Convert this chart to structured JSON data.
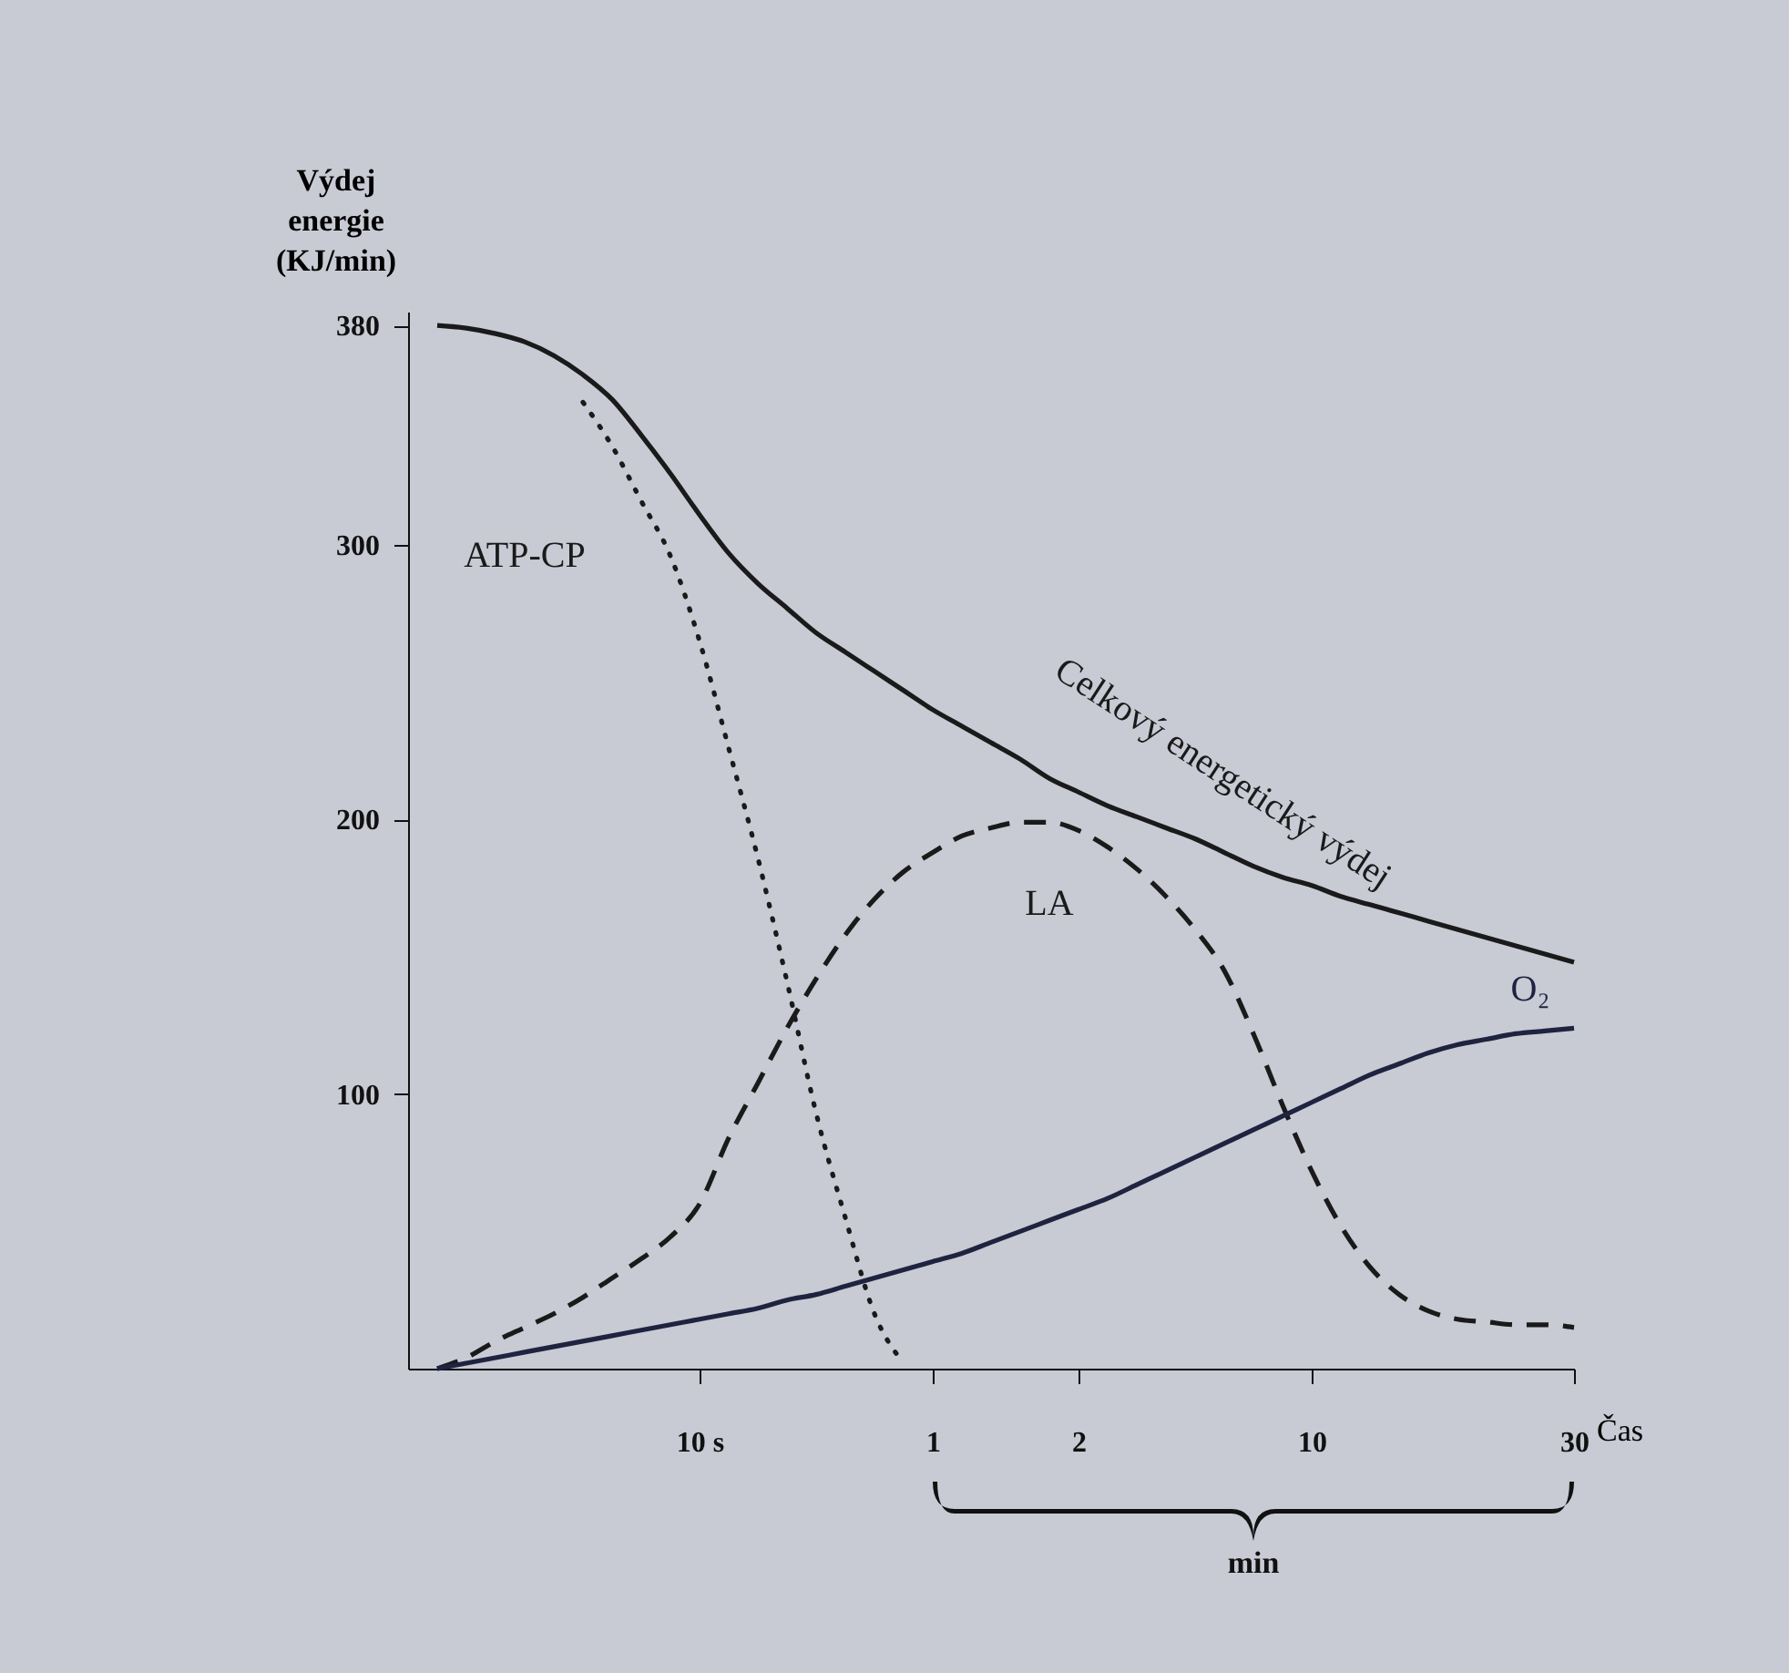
{
  "chart_data": {
    "type": "line",
    "ylabel": "Výdej energie (KJ/min)",
    "xlabel": "Čas",
    "categories": [
      null,
      null,
      null,
      null,
      null,
      null,
      null,
      null,
      null,
      null,
      "10 s",
      null,
      null,
      null,
      null,
      null,
      null,
      null,
      "1",
      null,
      null,
      null,
      null,
      "2",
      null,
      null,
      null,
      null,
      null,
      null,
      null,
      "10",
      null,
      null,
      null,
      null,
      null,
      null,
      null,
      null,
      "30"
    ],
    "ylim": [
      0,
      385
    ],
    "yticks": [
      100,
      200,
      300,
      380
    ],
    "grid": false,
    "marker": "none",
    "annotations": [
      "min"
    ],
    "series": [
      {
        "name": "Celkový energetický výdej",
        "color": "#1a1a1a",
        "line_style": "solid",
        "values": [
          null,
          380,
          379,
          377,
          374,
          369,
          362,
          353,
          340,
          326,
          311,
          297,
          286,
          277,
          268,
          261,
          254,
          247,
          240,
          234,
          228,
          222,
          215,
          210,
          205,
          201,
          197,
          193,
          188,
          183,
          179,
          176,
          172,
          169,
          166,
          163,
          160,
          157,
          154,
          151,
          148
        ]
      },
      {
        "name": "ATP-CP",
        "color": "#1a1a1a",
        "line_style": "dotted",
        "values": [
          null,
          null,
          null,
          null,
          null,
          null,
          352,
          336,
          316,
          296,
          265,
          226,
          186,
          141,
          93,
          55,
          20,
          2,
          null,
          null,
          null,
          null,
          null,
          null,
          null,
          null,
          null,
          null,
          null,
          null,
          null,
          null,
          null,
          null,
          null,
          null,
          null,
          null,
          null,
          null,
          null
        ]
      },
      {
        "name": "LA",
        "color": "#1a1a1a",
        "line_style": "dashed",
        "values": [
          null,
          0,
          4,
          10,
          15,
          20,
          26,
          33,
          40,
          48,
          60,
          84,
          104,
          124,
          142,
          158,
          171,
          181,
          188,
          194,
          197,
          199,
          199,
          196,
          190,
          182,
          172,
          160,
          145,
          122,
          96,
          72,
          52,
          37,
          27,
          21,
          18,
          17,
          16,
          16,
          15
        ]
      },
      {
        "name": "O₂",
        "color": "#1f2340",
        "line_style": "solid",
        "values": [
          null,
          0,
          2,
          4,
          6,
          8,
          10,
          12,
          14,
          16,
          18,
          20,
          22,
          25,
          27,
          30,
          33,
          36,
          39,
          42,
          46,
          50,
          54,
          58,
          62,
          67,
          72,
          77,
          82,
          87,
          92,
          97,
          102,
          107,
          111,
          115,
          118,
          120,
          122,
          123,
          124
        ]
      }
    ]
  }
}
